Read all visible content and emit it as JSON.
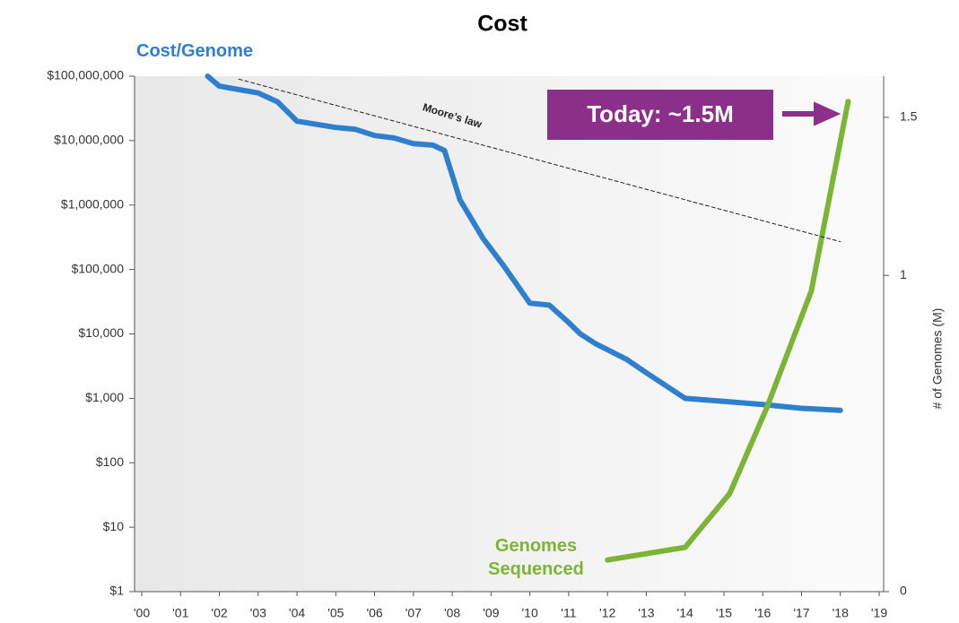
{
  "chart_data": {
    "type": "line",
    "title": "Cost",
    "y2_label": "# of Genomes (M)",
    "annotation": "Today: ~1.5M",
    "log_y": true,
    "xlim": [
      2000,
      2019
    ],
    "xticks": [
      {
        "value": 2000,
        "label": "'00"
      },
      {
        "value": 2001,
        "label": "'01"
      },
      {
        "value": 2002,
        "label": "'02"
      },
      {
        "value": 2003,
        "label": "'03"
      },
      {
        "value": 2004,
        "label": "'04"
      },
      {
        "value": 2005,
        "label": "'05"
      },
      {
        "value": 2006,
        "label": "'06"
      },
      {
        "value": 2007,
        "label": "'07"
      },
      {
        "value": 2008,
        "label": "'08"
      },
      {
        "value": 2009,
        "label": "'09"
      },
      {
        "value": 2010,
        "label": "'10"
      },
      {
        "value": 2011,
        "label": "'11"
      },
      {
        "value": 2012,
        "label": "'12"
      },
      {
        "value": 2013,
        "label": "'13"
      },
      {
        "value": 2014,
        "label": "'14"
      },
      {
        "value": 2015,
        "label": "'15"
      },
      {
        "value": 2016,
        "label": "'16"
      },
      {
        "value": 2017,
        "label": "'17"
      },
      {
        "value": 2018,
        "label": "'18"
      },
      {
        "value": 2019,
        "label": "'19"
      }
    ],
    "ylim": [
      1,
      100000000
    ],
    "yticks": [
      {
        "value": 1,
        "label": "$1"
      },
      {
        "value": 10,
        "label": "$10"
      },
      {
        "value": 100,
        "label": "$100"
      },
      {
        "value": 1000,
        "label": "$1,000"
      },
      {
        "value": 10000,
        "label": "$10,000"
      },
      {
        "value": 100000,
        "label": "$100,000"
      },
      {
        "value": 1000000,
        "label": "$1,000,000"
      },
      {
        "value": 10000000,
        "label": "$10,000,000"
      },
      {
        "value": 100000000,
        "label": "$100,000,000"
      }
    ],
    "y2lim": [
      0,
      1.63
    ],
    "y2ticks": [
      0,
      1,
      1.5
    ],
    "series": [
      {
        "name": "Cost/Genome",
        "color": "#2f7fd1",
        "x": [
          2001.7,
          2002,
          2003,
          2003.5,
          2004,
          2005,
          2005.5,
          2006,
          2006.5,
          2007,
          2007.5,
          2007.8,
          2008.2,
          2008.8,
          2009.3,
          2010,
          2010.5,
          2011,
          2011.3,
          2011.7,
          2012.5,
          2013,
          2014,
          2015,
          2016,
          2017,
          2018
        ],
        "values": [
          100000000,
          70000000,
          55000000,
          40000000,
          20000000,
          16000000,
          15000000,
          12000000,
          11000000,
          9000000,
          8500000,
          7000000,
          1200000,
          300000,
          120000,
          30000,
          28000,
          15000,
          10000,
          7000,
          4000,
          2500,
          1000,
          900,
          800,
          700,
          650
        ]
      },
      {
        "name": "Genomes Sequenced",
        "color": "#7cb536",
        "axis": "y2",
        "x": [
          2012,
          2013,
          2014,
          2015.15,
          2016.1,
          2017.25,
          2018.2
        ],
        "values": [
          0.1,
          0.12,
          0.14,
          0.31,
          0.58,
          0.95,
          1.55
        ]
      },
      {
        "name": "Moore’s law",
        "color": "#222222",
        "dashed": true,
        "x": [
          2002.5,
          2018
        ],
        "values": [
          90000000,
          270000
        ]
      }
    ]
  }
}
